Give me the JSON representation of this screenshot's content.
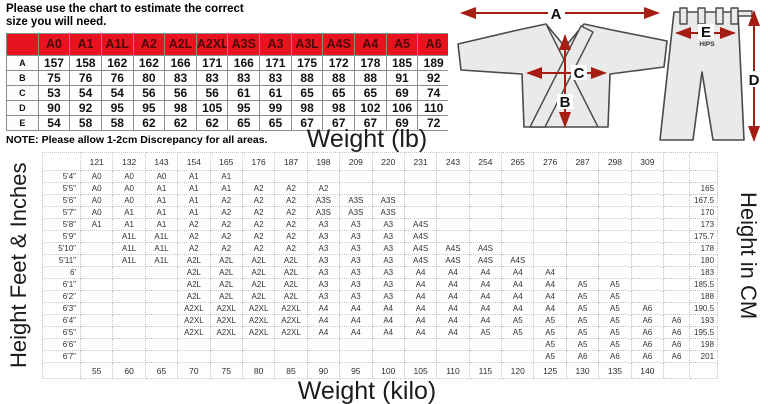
{
  "intro_text": "Please use the chart to estimate the correct size you will need.",
  "note": {
    "label": "NOTE:",
    "text": "Please allow 1-2cm Discrepancy for all areas."
  },
  "diagram": {
    "a": "A",
    "b": "B",
    "c": "C",
    "d": "D",
    "e": "E",
    "hips": "HIPS"
  },
  "colors": {
    "table_red": "#e8131f",
    "arrow_red": "#a51d13",
    "garment_gray": "#eaeaea"
  },
  "chart_data": [
    {
      "type": "table",
      "title": "Measurements (cm) per size",
      "columns": [
        "",
        "A0",
        "A1",
        "A1L",
        "A2",
        "A2L",
        "A2XL",
        "A3S",
        "A3",
        "A3L",
        "A4S",
        "A4",
        "A5",
        "A6"
      ],
      "rows": [
        [
          "A",
          "157",
          "158",
          "162",
          "162",
          "166",
          "171",
          "166",
          "171",
          "175",
          "172",
          "178",
          "185",
          "189"
        ],
        [
          "B",
          "75",
          "76",
          "76",
          "80",
          "83",
          "83",
          "83",
          "83",
          "88",
          "88",
          "88",
          "91",
          "92"
        ],
        [
          "C",
          "53",
          "54",
          "54",
          "56",
          "56",
          "56",
          "61",
          "61",
          "65",
          "65",
          "65",
          "69",
          "74"
        ],
        [
          "D",
          "90",
          "92",
          "95",
          "95",
          "98",
          "105",
          "95",
          "99",
          "98",
          "98",
          "102",
          "106",
          "110"
        ],
        [
          "E",
          "54",
          "58",
          "58",
          "62",
          "62",
          "62",
          "65",
          "65",
          "67",
          "67",
          "67",
          "69",
          "72"
        ]
      ]
    },
    {
      "type": "table",
      "title": "Size by height and weight",
      "xlabel_top": "Weight (lb)",
      "xlabel_bottom": "Weight (kilo)",
      "ylabel_left": "Height Feet & Inches",
      "ylabel_right": "Height in CM",
      "weight_lb": [
        "121",
        "132",
        "143",
        "154",
        "165",
        "176",
        "187",
        "198",
        "209",
        "220",
        "231",
        "243",
        "254",
        "265",
        "276",
        "287",
        "298",
        "309",
        ""
      ],
      "weight_kilo": [
        "55",
        "60",
        "65",
        "70",
        "75",
        "80",
        "85",
        "90",
        "95",
        "100",
        "105",
        "110",
        "115",
        "120",
        "125",
        "130",
        "135",
        "140",
        ""
      ],
      "height_ft": [
        "5'4\"",
        "5'5\"",
        "5'6\"",
        "5'7\"",
        "5'8\"",
        "5'9\"",
        "5'10\"",
        "5'11\"",
        "6'",
        "6'1\"",
        "6'2\"",
        "6'3\"",
        "6'4\"",
        "6'5\"",
        "6'6\"",
        "6'7\""
      ],
      "height_cm": [
        "",
        "165",
        "167.5",
        "170",
        "173",
        "175.7",
        "178",
        "180",
        "183",
        "185.5",
        "188",
        "190.5",
        "193",
        "195.5",
        "198",
        "201"
      ],
      "cells": [
        [
          "A0",
          "A0",
          "A0",
          "A1",
          "A1",
          "",
          "",
          "",
          "",
          "",
          "",
          "",
          "",
          "",
          "",
          "",
          "",
          "",
          ""
        ],
        [
          "A0",
          "A0",
          "A1",
          "A1",
          "A1",
          "A2",
          "A2",
          "A2",
          "",
          "",
          "",
          "",
          "",
          "",
          "",
          "",
          "",
          "",
          ""
        ],
        [
          "A0",
          "A0",
          "A1",
          "A1",
          "A2",
          "A2",
          "A2",
          "A3S",
          "A3S",
          "A3S",
          "",
          "",
          "",
          "",
          "",
          "",
          "",
          "",
          ""
        ],
        [
          "A0",
          "A1",
          "A1",
          "A1",
          "A2",
          "A2",
          "A2",
          "A3S",
          "A3S",
          "A3S",
          "",
          "",
          "",
          "",
          "",
          "",
          "",
          "",
          ""
        ],
        [
          "A1",
          "A1",
          "A1",
          "A2",
          "A2",
          "A2",
          "A2",
          "A3",
          "A3",
          "A3",
          "A4S",
          "",
          "",
          "",
          "",
          "",
          "",
          "",
          ""
        ],
        [
          "",
          "A1L",
          "A1L",
          "A2",
          "A2",
          "A2",
          "A2",
          "A3",
          "A3",
          "A3",
          "A4S",
          "",
          "",
          "",
          "",
          "",
          "",
          "",
          ""
        ],
        [
          "",
          "A1L",
          "A1L",
          "A2",
          "A2",
          "A2",
          "A2",
          "A3",
          "A3",
          "A3",
          "A4S",
          "A4S",
          "A4S",
          "",
          "",
          "",
          "",
          "",
          ""
        ],
        [
          "",
          "A1L",
          "A1L",
          "A2L",
          "A2L",
          "A2L",
          "A2L",
          "A3",
          "A3",
          "A3",
          "A4S",
          "A4S",
          "A4S",
          "A4S",
          "",
          "",
          "",
          "",
          ""
        ],
        [
          "",
          "",
          "",
          "A2L",
          "A2L",
          "A2L",
          "A2L",
          "A3",
          "A3",
          "A3",
          "A4",
          "A4",
          "A4",
          "A4",
          "A4",
          "",
          "",
          "",
          ""
        ],
        [
          "",
          "",
          "",
          "A2L",
          "A2L",
          "A2L",
          "A2L",
          "A3",
          "A3",
          "A3",
          "A4",
          "A4",
          "A4",
          "A4",
          "A4",
          "A5",
          "A5",
          "",
          ""
        ],
        [
          "",
          "",
          "",
          "A2L",
          "A2L",
          "A2L",
          "A2L",
          "A3",
          "A3",
          "A3",
          "A4",
          "A4",
          "A4",
          "A4",
          "A4",
          "A5",
          "A5",
          "",
          ""
        ],
        [
          "",
          "",
          "",
          "A2XL",
          "A2XL",
          "A2XL",
          "A2XL",
          "A4",
          "A4",
          "A4",
          "A4",
          "A4",
          "A4",
          "A4",
          "A4",
          "A5",
          "A5",
          "A6",
          ""
        ],
        [
          "",
          "",
          "",
          "A2XL",
          "A2XL",
          "A2XL",
          "A2XL",
          "A4",
          "A4",
          "A4",
          "A4",
          "A4",
          "A4",
          "A5",
          "A5",
          "A5",
          "A5",
          "A6",
          "A6"
        ],
        [
          "",
          "",
          "",
          "A2XL",
          "A2XL",
          "A2XL",
          "A2XL",
          "A4",
          "A4",
          "A4",
          "A4",
          "A4",
          "A5",
          "A5",
          "A5",
          "A5",
          "A5",
          "A6",
          "A6"
        ],
        [
          "",
          "",
          "",
          "",
          "",
          "",
          "",
          "",
          "",
          "",
          "",
          "",
          "",
          "",
          "A5",
          "A5",
          "A5",
          "A6",
          "A6"
        ],
        [
          "",
          "",
          "",
          "",
          "",
          "",
          "",
          "",
          "",
          "",
          "",
          "",
          "",
          "",
          "A5",
          "A6",
          "A6",
          "A6",
          "A6"
        ]
      ]
    }
  ]
}
